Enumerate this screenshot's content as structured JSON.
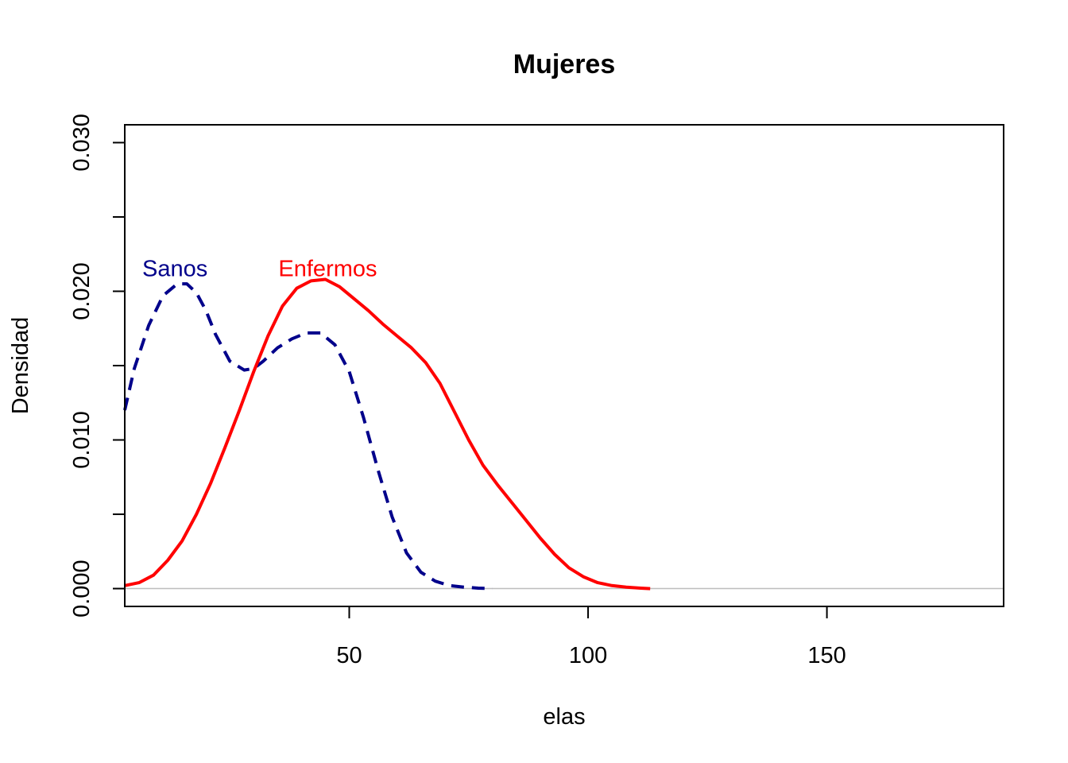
{
  "chart_data": {
    "type": "line",
    "title": "Mujeres",
    "xlabel": "elas",
    "ylabel": "Densidad",
    "xlim": [
      3,
      187
    ],
    "ylim": [
      -0.0012,
      0.0312
    ],
    "xticks": [
      50,
      100,
      150
    ],
    "xtick_labels": [
      "50",
      "100",
      "150"
    ],
    "yticks": [
      0.0,
      0.005,
      0.01,
      0.015,
      0.02,
      0.025,
      0.03
    ],
    "ytick_labels": [
      "0.000",
      "",
      "0.010",
      "",
      "0.020",
      "",
      "0.030"
    ],
    "grid": false,
    "baseline": 0,
    "series": [
      {
        "name": "Sanos",
        "color": "#00008B",
        "dash": "dashed",
        "x": [
          3,
          5,
          8,
          11,
          14,
          16,
          18,
          20,
          22,
          25,
          28,
          30,
          32,
          35,
          38,
          41,
          44,
          47,
          50,
          53,
          56,
          59,
          62,
          65,
          68,
          71,
          74,
          77,
          80
        ],
        "y": [
          0.012,
          0.0148,
          0.0177,
          0.0197,
          0.0205,
          0.0205,
          0.0199,
          0.0187,
          0.0171,
          0.0153,
          0.0147,
          0.0148,
          0.0153,
          0.0162,
          0.0168,
          0.0172,
          0.0172,
          0.0164,
          0.0146,
          0.0115,
          0.008,
          0.0048,
          0.0024,
          0.0011,
          0.0005,
          0.0002,
          0.0001,
          3e-05,
          0.0
        ]
      },
      {
        "name": "Enfermos",
        "color": "#FF0000",
        "dash": "solid",
        "x": [
          3,
          6,
          9,
          12,
          15,
          18,
          21,
          24,
          27,
          30,
          33,
          36,
          39,
          42,
          45,
          48,
          51,
          54,
          57,
          60,
          63,
          66,
          69,
          72,
          75,
          78,
          81,
          84,
          87,
          90,
          93,
          96,
          99,
          102,
          105,
          108,
          111,
          113
        ],
        "y": [
          0.0002,
          0.0004,
          0.0009,
          0.0019,
          0.0032,
          0.005,
          0.0071,
          0.0095,
          0.012,
          0.0146,
          0.017,
          0.019,
          0.0202,
          0.0207,
          0.0208,
          0.0203,
          0.0195,
          0.0187,
          0.0178,
          0.017,
          0.0162,
          0.0152,
          0.0138,
          0.0119,
          0.01,
          0.0083,
          0.007,
          0.0058,
          0.0046,
          0.0034,
          0.0023,
          0.0014,
          0.0008,
          0.0004,
          0.0002,
          0.0001,
          3e-05,
          0.0
        ]
      }
    ],
    "annotations": [
      {
        "text": "Sanos",
        "x": 13.5,
        "y": 0.0216,
        "color": "#00008B"
      },
      {
        "text": "Enfermos",
        "x": 45.5,
        "y": 0.0216,
        "color": "#FF0000"
      }
    ]
  }
}
